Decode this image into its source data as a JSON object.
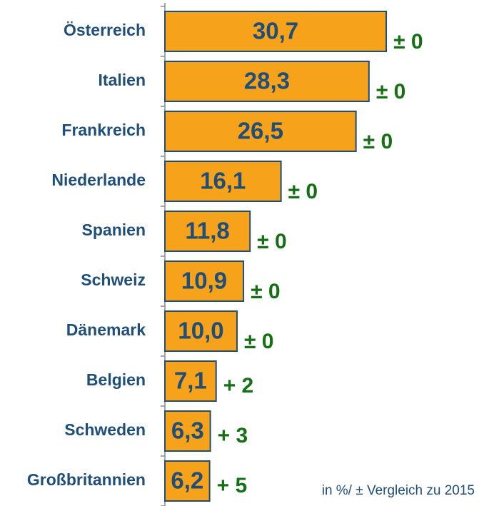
{
  "chart_data": {
    "type": "bar",
    "orientation": "horizontal",
    "categories": [
      "Österreich",
      "Italien",
      "Frankreich",
      "Niederlande",
      "Spanien",
      "Schweiz",
      "Dänemark",
      "Belgien",
      "Schweden",
      "Großbritannien"
    ],
    "values": [
      30.7,
      28.3,
      26.5,
      16.1,
      11.8,
      10.9,
      10.0,
      7.1,
      6.3,
      6.2
    ],
    "value_labels": [
      "30,7",
      "28,3",
      "26,5",
      "16,1",
      "11,8",
      "10,9",
      "10,0",
      "7,1",
      "6,3",
      "6,2"
    ],
    "changes": [
      "± 0",
      "± 0",
      "± 0",
      "± 0",
      "± 0",
      "± 0",
      "± 0",
      "+ 2",
      "+ 3",
      "+ 5"
    ],
    "color": "#f7a21b",
    "edge_color": "#1f4e79",
    "xlim": [
      0,
      40
    ],
    "note": "in %/ ± Vergleich zu 2015"
  }
}
